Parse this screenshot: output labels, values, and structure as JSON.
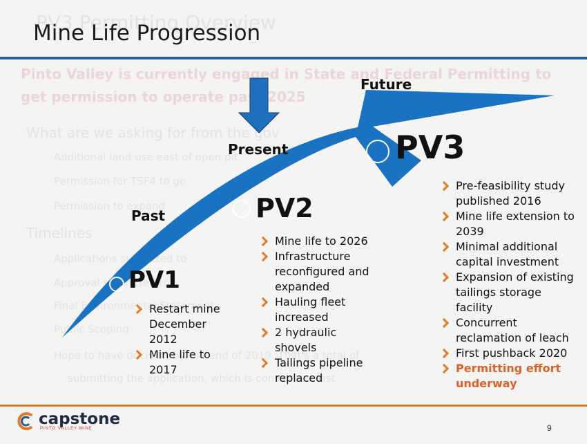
{
  "slide": {
    "title": "Mine Life Progression",
    "page_number": "9"
  },
  "ghost_text": {
    "title": "PV3 Permitting Overview",
    "line1": "Pinto Valley is currently engaged in State and Federal Permitting to",
    "line2": "get permission to operate past 2025",
    "line3": "What are we asking for from the gov",
    "line4": "Additional land use east of open pit",
    "line5": "Permission for TSF4 to go",
    "line6": "Permission to expand",
    "line7": "Timelines",
    "line8": "Applications submitted to",
    "line9": "Approval submitted to",
    "line10": "Final Environmental Statement",
    "line11": "Public Scoping",
    "line12": "Hope to have decision by the end of 2019. That's a total of",
    "line13": "submitting the application, which is considered fast"
  },
  "timeline": {
    "past_label": "Past",
    "present_label": "Present",
    "future_label": "Future",
    "pv1": {
      "label": "PV1",
      "bullets": [
        "Restart mine December 2012",
        "Mine life to 2017"
      ]
    },
    "pv2": {
      "label": "PV2",
      "bullets": [
        "Mine life to 2026",
        "Infrastructure reconfigured and expanded",
        "Hauling fleet increased",
        "2 hydraulic shovels",
        "Tailings pipeline replaced"
      ]
    },
    "pv3": {
      "label": "PV3",
      "bullets": [
        "Pre-feasibility study published 2016",
        "Mine life extension to 2039",
        "Minimal additional capital investment",
        "Expansion of existing tailings storage facility",
        "Concurrent reclamation of leach",
        "First pushback 2020"
      ],
      "highlight_bullet": "Permitting effort underway"
    }
  },
  "logo": {
    "wordmark": "capstone",
    "subtitle": "PINTO VALLEY MINE"
  },
  "colors": {
    "arrow_blue": "#1a72c2",
    "title_rule_blue": "#2a5a93",
    "accent_orange": "#e07a2b",
    "highlight_orange": "#d9622a"
  }
}
